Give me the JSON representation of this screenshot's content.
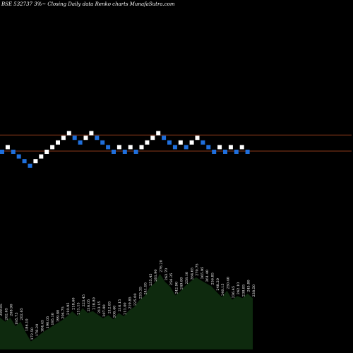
{
  "chart_data": {
    "type": "renko",
    "title": "BSE 532737 3%~  Closing Daily data  Renko  charts MunafaSutra.com",
    "background": "#000000",
    "up_color": "#ffffff",
    "down_color": "#1f6fdc",
    "line_color": "#8b3a1a",
    "volume_fill": "#0e2a0e",
    "reference_lines": [
      {
        "name": "upper",
        "level": 3
      },
      {
        "name": "lower",
        "level": 0
      }
    ],
    "bricks": [
      {
        "dir": "down",
        "level": 0
      },
      {
        "dir": "up",
        "level": 1
      },
      {
        "dir": "down",
        "level": 0
      },
      {
        "dir": "down",
        "level": -1
      },
      {
        "dir": "down",
        "level": -2
      },
      {
        "dir": "down",
        "level": -3
      },
      {
        "dir": "up",
        "level": -2
      },
      {
        "dir": "up",
        "level": -1
      },
      {
        "dir": "up",
        "level": 0
      },
      {
        "dir": "up",
        "level": 1
      },
      {
        "dir": "up",
        "level": 2
      },
      {
        "dir": "up",
        "level": 3
      },
      {
        "dir": "up",
        "level": 4
      },
      {
        "dir": "down",
        "level": 3
      },
      {
        "dir": "down",
        "level": 2
      },
      {
        "dir": "up",
        "level": 3
      },
      {
        "dir": "up",
        "level": 4
      },
      {
        "dir": "down",
        "level": 3
      },
      {
        "dir": "down",
        "level": 2
      },
      {
        "dir": "down",
        "level": 1
      },
      {
        "dir": "down",
        "level": 0
      },
      {
        "dir": "up",
        "level": 1
      },
      {
        "dir": "down",
        "level": 0
      },
      {
        "dir": "up",
        "level": 1
      },
      {
        "dir": "down",
        "level": 0
      },
      {
        "dir": "up",
        "level": 1
      },
      {
        "dir": "up",
        "level": 2
      },
      {
        "dir": "up",
        "level": 3
      },
      {
        "dir": "up",
        "level": 4
      },
      {
        "dir": "down",
        "level": 3
      },
      {
        "dir": "down",
        "level": 2
      },
      {
        "dir": "down",
        "level": 1
      },
      {
        "dir": "up",
        "level": 2
      },
      {
        "dir": "down",
        "level": 1
      },
      {
        "dir": "up",
        "level": 2
      },
      {
        "dir": "up",
        "level": 3
      },
      {
        "dir": "down",
        "level": 2
      },
      {
        "dir": "down",
        "level": 1
      },
      {
        "dir": "down",
        "level": 0
      },
      {
        "dir": "up",
        "level": 1
      },
      {
        "dir": "down",
        "level": 0
      },
      {
        "dir": "up",
        "level": 1
      },
      {
        "dir": "down",
        "level": 0
      },
      {
        "dir": "up",
        "level": 1
      },
      {
        "dir": "down",
        "level": 0
      }
    ],
    "volume_labels": [
      "209.05",
      "202.65",
      "208.90",
      "195.75",
      "202.65",
      "186.10",
      "172.50",
      "178.20",
      "184.45",
      "190.05",
      "195.10",
      "199.80",
      "204.75",
      "210.95",
      "218.60",
      "211.15",
      "223.45",
      "216.05",
      "218.80",
      "213.15",
      "207.90",
      "212.85",
      "206.40",
      "216.15",
      "211.00",
      "219.85",
      "225.00",
      "235.35",
      "241.95",
      "255.45",
      "261.90",
      "276.20",
      "263.70",
      "256.35",
      "242.90",
      "249.80",
      "258.10",
      "264.65",
      "270.75",
      "265.95",
      "261.40",
      "256.85",
      "248.20",
      "240.15",
      "250.40",
      "236.45",
      "242.10",
      "238.85",
      "245.80",
      "238.50"
    ]
  }
}
